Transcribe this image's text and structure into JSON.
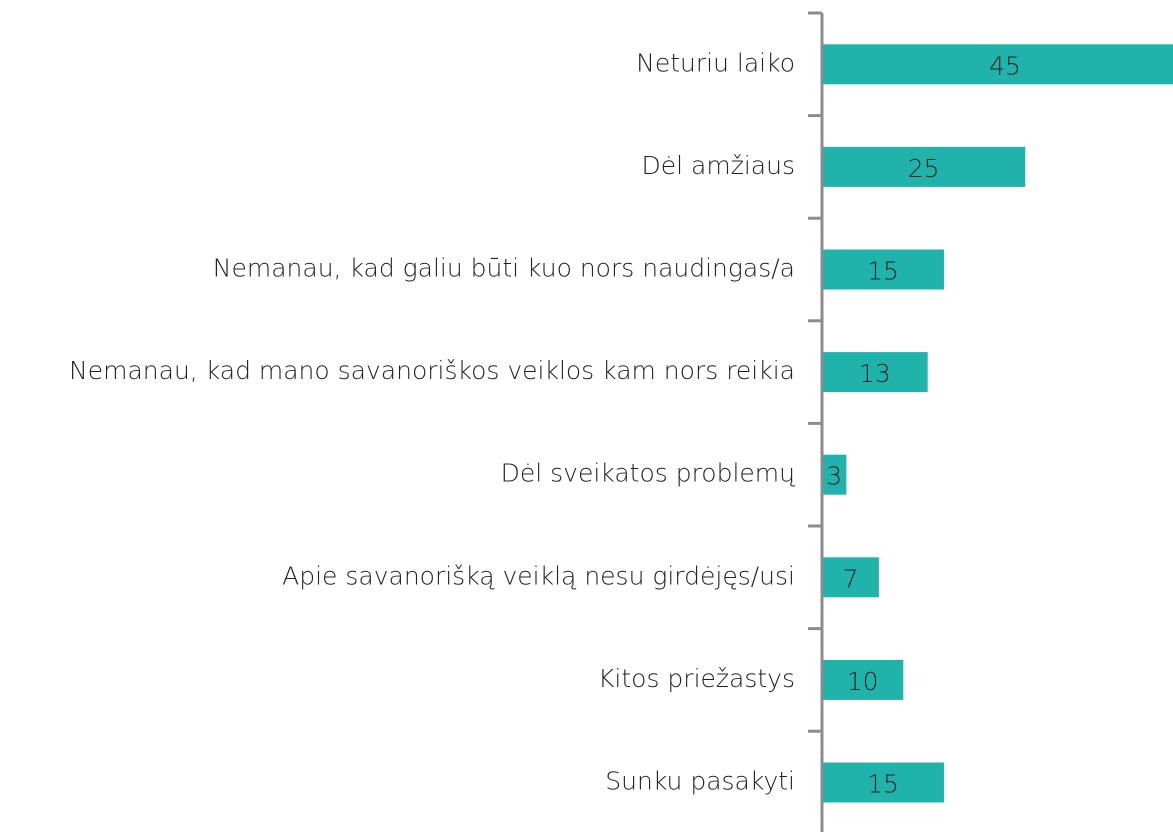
{
  "chart_data": {
    "type": "bar",
    "orientation": "horizontal",
    "categories": [
      "Neturiu laiko",
      "Dėl amžiaus",
      "Nemanau, kad galiu būti kuo nors naudingas/a",
      "Nemanau, kad mano savanoriškos veiklos kam nors reikia",
      "Dėl sveikatos problemų",
      "Apie savanorišką veiklą nesu girdėjęs/usi",
      "Kitos priežastys",
      "Sunku pasakyti"
    ],
    "values": [
      45,
      25,
      15,
      13,
      3,
      7,
      10,
      15
    ],
    "color": "#1fb3ac"
  }
}
